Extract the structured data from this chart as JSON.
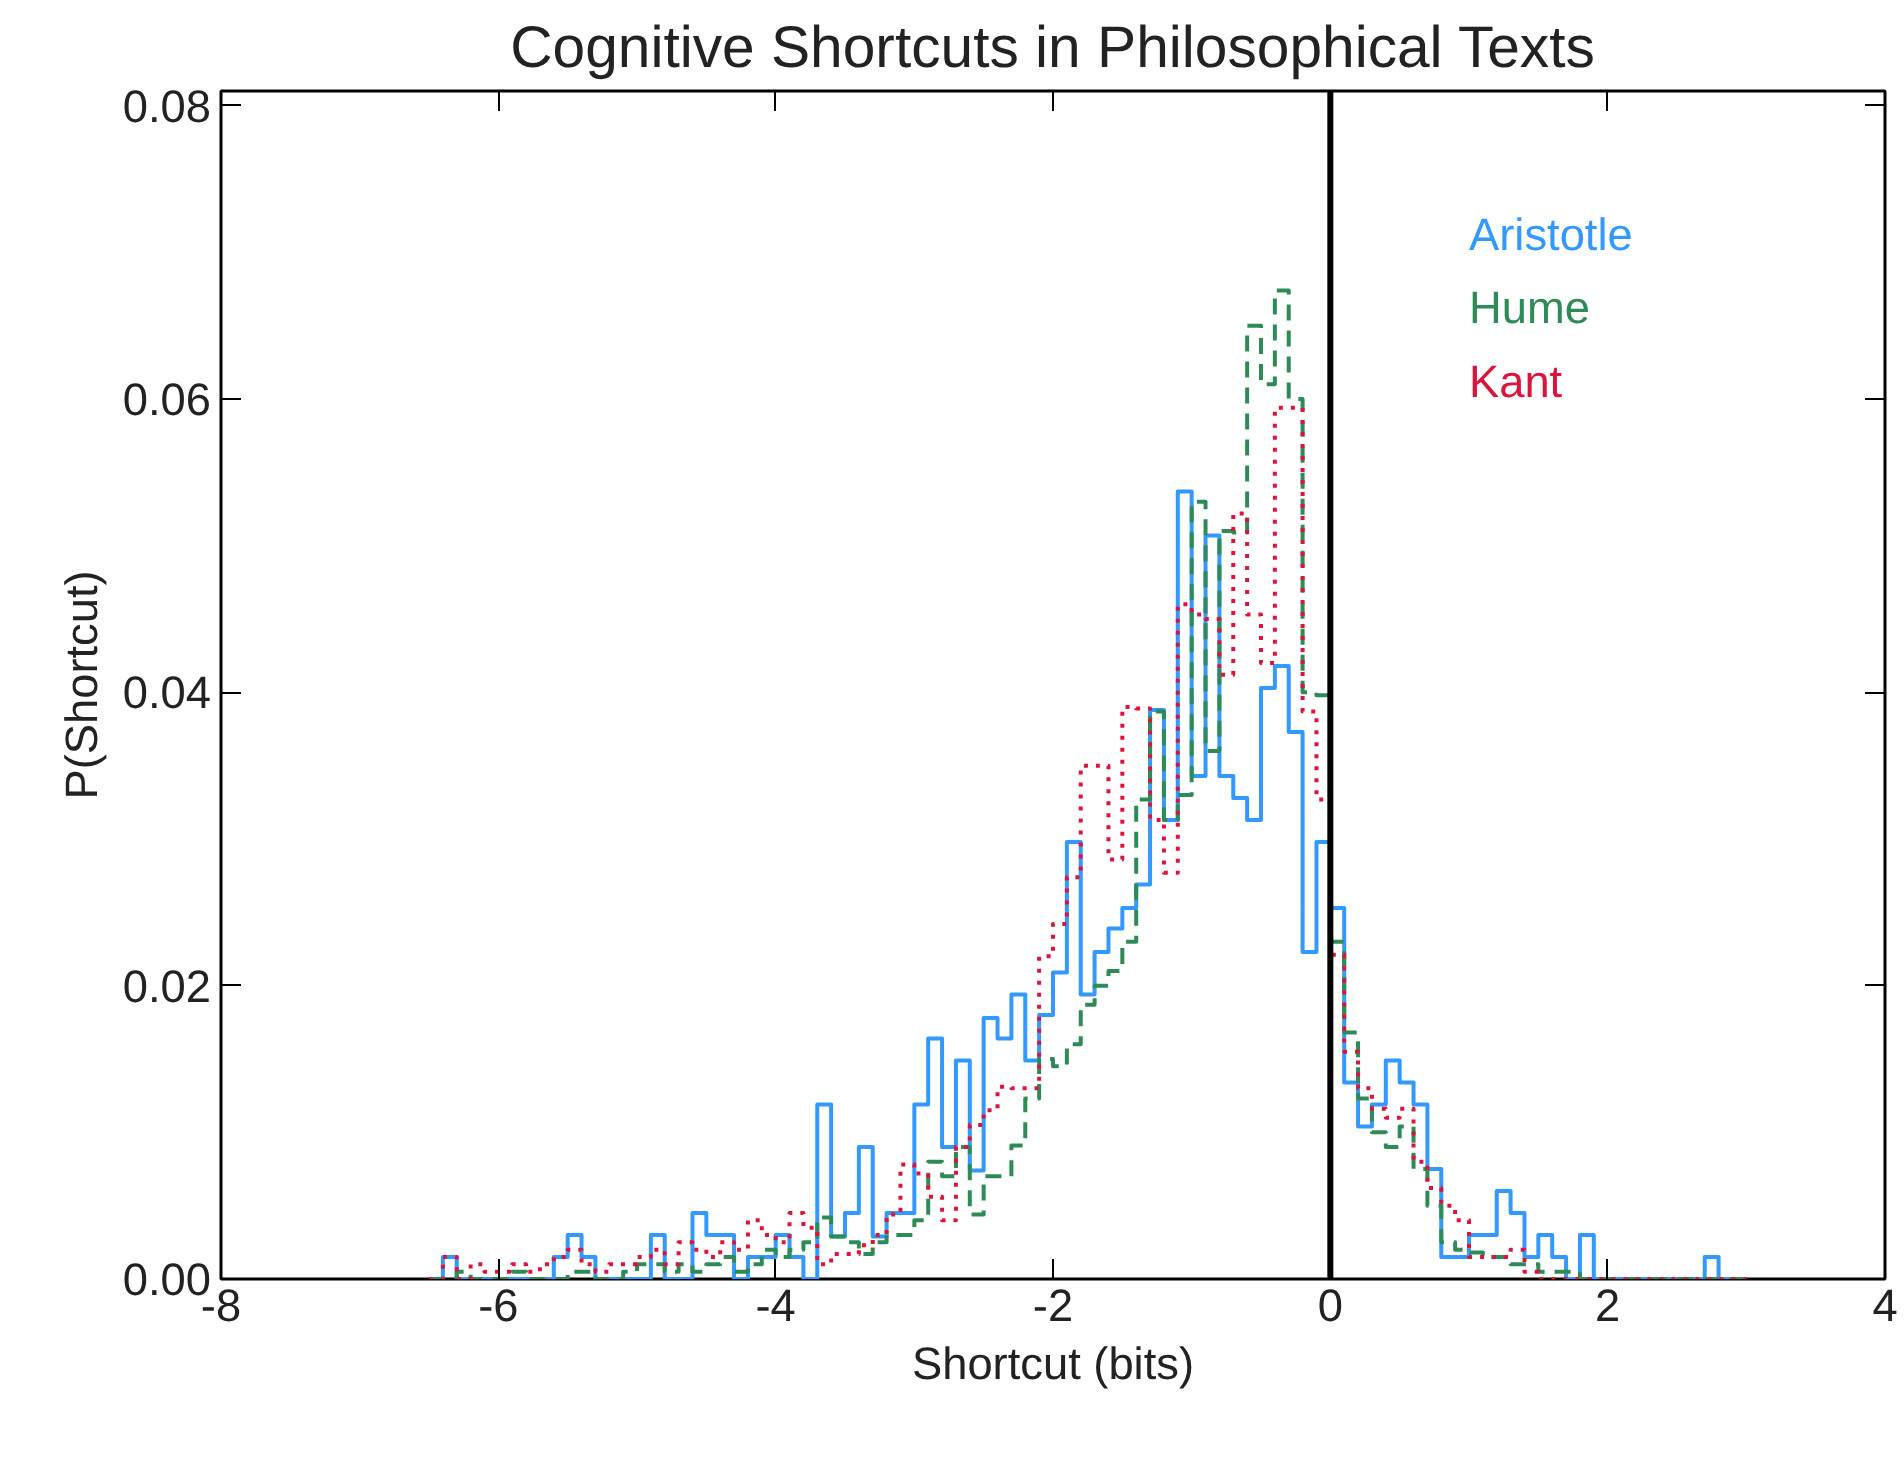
{
  "chart_data": {
    "type": "histogram",
    "title": "Cognitive Shortcuts in Philosophical Texts",
    "xlabel": "Shortcut (bits)",
    "ylabel": "P(Shortcut)",
    "bins": [
      -6.5,
      -6.4,
      -6.3,
      -6.2,
      -6.1,
      -6.0,
      -5.9,
      -5.8,
      -5.7,
      -5.6,
      -5.5,
      -5.4,
      -5.3,
      -5.2,
      -5.1,
      -5.0,
      -4.9,
      -4.8,
      -4.7,
      -4.6,
      -4.5,
      -4.4,
      -4.3,
      -4.2,
      -4.1,
      -4.0,
      -3.9,
      -3.8,
      -3.7,
      -3.6,
      -3.5,
      -3.4,
      -3.3,
      -3.2,
      -3.1,
      -3.0,
      -2.9,
      -2.8,
      -2.7,
      -2.6,
      -2.5,
      -2.4,
      -2.3,
      -2.2,
      -2.1,
      -2.0,
      -1.9,
      -1.8,
      -1.7,
      -1.6,
      -1.5,
      -1.4,
      -1.3,
      -1.2,
      -1.1,
      -1.0,
      -0.9,
      -0.8,
      -0.7,
      -0.6,
      -0.5,
      -0.4,
      -0.3,
      -0.2,
      -0.1,
      0.0,
      0.1,
      0.2,
      0.3,
      0.4,
      0.5,
      0.6,
      0.7,
      0.8,
      0.9,
      1.0,
      1.1,
      1.2,
      1.3,
      1.4,
      1.5,
      1.6,
      1.7,
      1.8,
      1.9,
      2.0,
      2.1,
      2.2,
      2.3,
      2.4,
      2.5,
      2.6,
      2.7,
      2.8,
      2.9,
      3.0
    ],
    "series": [
      {
        "name": "Aristotle",
        "color": "#3399ff",
        "line_style": "solid",
        "values": [
          0,
          0.0015,
          0,
          0,
          0,
          0,
          0,
          0,
          0,
          0.0015,
          0.003,
          0.0015,
          0,
          0,
          0,
          0,
          0.003,
          0,
          0,
          0.0045,
          0.003,
          0.003,
          0,
          0.0015,
          0.0015,
          0.003,
          0.0015,
          0,
          0.0119,
          0.0029,
          0.0045,
          0.009,
          0.0029,
          0.0045,
          0.0045,
          0.0119,
          0.0164,
          0.009,
          0.0149,
          0.0074,
          0.0178,
          0.0164,
          0.0194,
          0.0149,
          0.018,
          0.0209,
          0.0298,
          0.0194,
          0.0223,
          0.0239,
          0.0253,
          0.0269,
          0.0388,
          0.0313,
          0.0537,
          0.0343,
          0.0507,
          0.0343,
          0.0328,
          0.0313,
          0.0403,
          0.0418,
          0.0373,
          0.0223,
          0.0298,
          0.0253,
          0.0134,
          0.0104,
          0.0119,
          0.0149,
          0.0134,
          0.0119,
          0.0075,
          0.0015,
          0.0015,
          0.003,
          0.003,
          0.006,
          0.0045,
          0.0015,
          0.003,
          0.0015,
          0,
          0.003,
          0,
          0,
          0,
          0,
          0,
          0,
          0,
          0,
          0.0015,
          0,
          0
        ]
      },
      {
        "name": "Hume",
        "color": "#2e8b57",
        "line_style": "dashed",
        "values": [
          0,
          0,
          0.0005,
          0,
          0,
          0,
          0.0005,
          0,
          0,
          0,
          0.0005,
          0.0005,
          0,
          0,
          0.0005,
          0.001,
          0.001,
          0.0005,
          0.001,
          0.0005,
          0.001,
          0.0015,
          0.0005,
          0.001,
          0.002,
          0.0015,
          0.002,
          0.0025,
          0.0042,
          0.0029,
          0.0025,
          0.0017,
          0.0025,
          0.003,
          0.003,
          0.004,
          0.008,
          0.007,
          0.009,
          0.0044,
          0.007,
          0.007,
          0.0091,
          0.0123,
          0.015,
          0.0145,
          0.016,
          0.0187,
          0.02,
          0.021,
          0.023,
          0.0327,
          0.0387,
          0.0313,
          0.033,
          0.053,
          0.036,
          0.051,
          0.0509,
          0.065,
          0.061,
          0.0674,
          0.06,
          0.04,
          0.0398,
          0.023,
          0.0168,
          0.0123,
          0.01,
          0.009,
          0.0104,
          0.0075,
          0.005,
          0.0025,
          0.002,
          0.0018,
          0.0015,
          0.0015,
          0.001,
          0.001,
          0.0005,
          0.0005,
          0.0005,
          0,
          0,
          0,
          0,
          0,
          0,
          0,
          0,
          0,
          0,
          0,
          0
        ]
      },
      {
        "name": "Kant",
        "color": "#dc143c",
        "line_style": "dotted",
        "values": [
          0,
          0.0015,
          0,
          0.001,
          0.0005,
          0.0005,
          0.001,
          0.0005,
          0.001,
          0.0015,
          0.002,
          0.001,
          0.0005,
          0.001,
          0.001,
          0.0015,
          0.002,
          0.001,
          0.0025,
          0.002,
          0.0015,
          0.0025,
          0.002,
          0.004,
          0.003,
          0.0025,
          0.0045,
          0.0035,
          0.001,
          0.0017,
          0.0017,
          0.0023,
          0.003,
          0.0044,
          0.0078,
          0.0072,
          0.0056,
          0.004,
          0.009,
          0.0105,
          0.0115,
          0.0131,
          0.013,
          0.013,
          0.022,
          0.0242,
          0.0274,
          0.035,
          0.035,
          0.0286,
          0.039,
          0.0389,
          0.0313,
          0.0277,
          0.046,
          0.0453,
          0.045,
          0.0412,
          0.0522,
          0.0453,
          0.042,
          0.0594,
          0.0594,
          0.0387,
          0.0327,
          0.0221,
          0.0155,
          0.013,
          0.0116,
          0.011,
          0.0116,
          0.008,
          0.0062,
          0.005,
          0.004,
          0.0015,
          0.0015,
          0.0015,
          0.002,
          0.0005,
          0,
          0,
          0,
          0,
          0,
          0,
          0,
          0,
          0,
          0,
          0,
          0,
          0,
          0,
          0
        ]
      }
    ],
    "xlim": [
      -8,
      4
    ],
    "ylim": [
      0,
      0.081
    ],
    "xticks": [
      -8,
      -6,
      -4,
      -2,
      0,
      2,
      4
    ],
    "yticks": [
      {
        "value": 0,
        "label": "0.00"
      },
      {
        "value": 0.02,
        "label": "0.02"
      },
      {
        "value": 0.04,
        "label": "0.04"
      },
      {
        "value": 0.06,
        "label": "0.06"
      },
      {
        "value": 0.08,
        "label": "0.08"
      }
    ],
    "ref_lines": [
      {
        "axis": "x",
        "value": 0,
        "color": "#000000",
        "line_style": "solid"
      }
    ],
    "grid": false
  }
}
